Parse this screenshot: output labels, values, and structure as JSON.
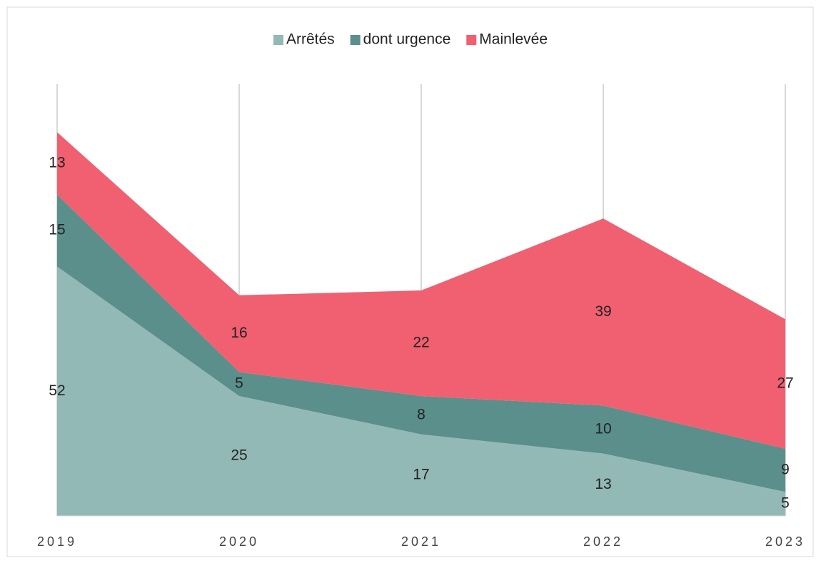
{
  "chart_data": {
    "type": "stacked_area",
    "categories": [
      "2019",
      "2020",
      "2021",
      "2022",
      "2023"
    ],
    "series": [
      {
        "name": "Arrêtés",
        "color": "#93b9b6",
        "values": [
          52,
          25,
          17,
          13,
          5
        ]
      },
      {
        "name": "dont urgence",
        "color": "#5a8f8b",
        "values": [
          15,
          5,
          8,
          10,
          9
        ]
      },
      {
        "name": "Mainlevée",
        "color": "#f06070",
        "values": [
          13,
          16,
          22,
          39,
          27
        ]
      }
    ],
    "ylim": [
      0,
      90
    ],
    "grid": true,
    "legend": "top"
  }
}
